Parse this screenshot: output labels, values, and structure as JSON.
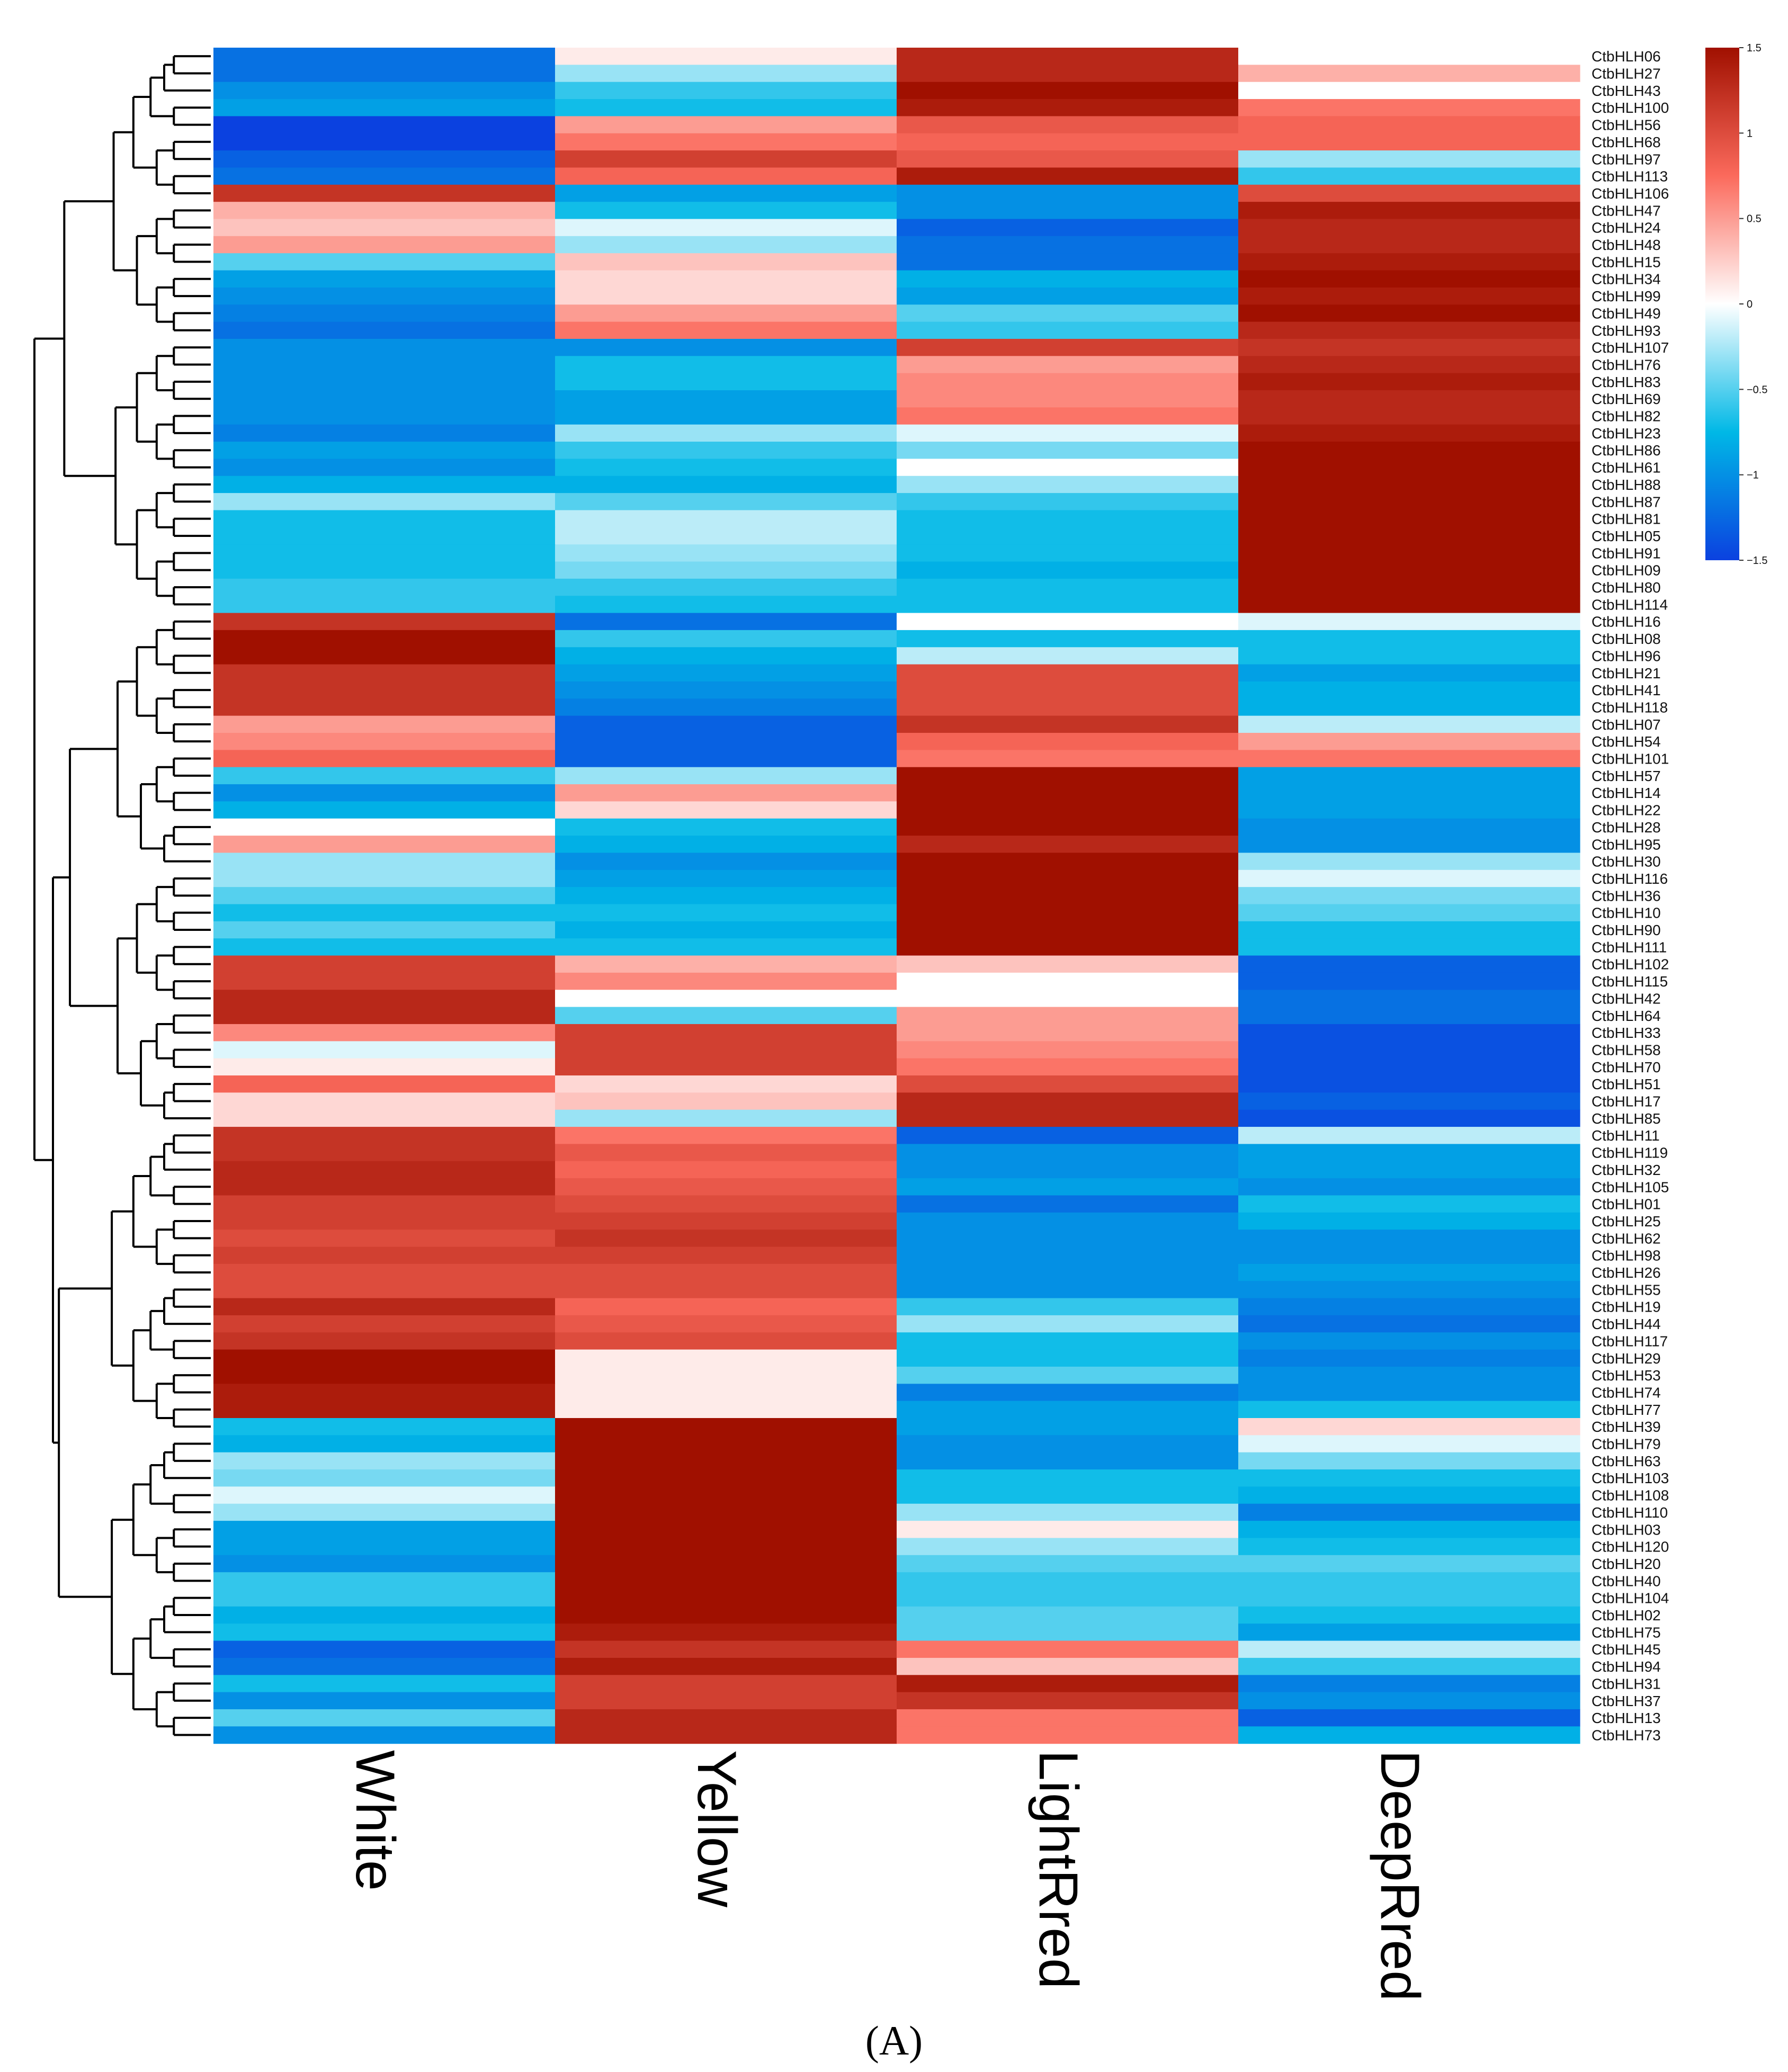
{
  "chart_data": {
    "type": "heatmap",
    "panel_label": "(A)",
    "columns": [
      "White",
      "Yellow",
      "LightRred",
      "DeepRred"
    ],
    "rows": [
      "CtbHLH06",
      "CtbHLH27",
      "CtbHLH43",
      "CtbHLH100",
      "CtbHLH56",
      "CtbHLH68",
      "CtbHLH97",
      "CtbHLH113",
      "CtbHLH106",
      "CtbHLH47",
      "CtbHLH24",
      "CtbHLH48",
      "CtbHLH15",
      "CtbHLH34",
      "CtbHLH99",
      "CtbHLH49",
      "CtbHLH93",
      "CtbHLH107",
      "CtbHLH76",
      "CtbHLH83",
      "CtbHLH69",
      "CtbHLH82",
      "CtbHLH23",
      "CtbHLH86",
      "CtbHLH61",
      "CtbHLH88",
      "CtbHLH87",
      "CtbHLH81",
      "CtbHLH05",
      "CtbHLH91",
      "CtbHLH09",
      "CtbHLH80",
      "CtbHLH114",
      "CtbHLH16",
      "CtbHLH08",
      "CtbHLH96",
      "CtbHLH21",
      "CtbHLH41",
      "CtbHLH118",
      "CtbHLH07",
      "CtbHLH54",
      "CtbHLH101",
      "CtbHLH57",
      "CtbHLH14",
      "CtbHLH22",
      "CtbHLH28",
      "CtbHLH95",
      "CtbHLH30",
      "CtbHLH116",
      "CtbHLH36",
      "CtbHLH10",
      "CtbHLH90",
      "CtbHLH111",
      "CtbHLH102",
      "CtbHLH115",
      "CtbHLH42",
      "CtbHLH64",
      "CtbHLH33",
      "CtbHLH58",
      "CtbHLH70",
      "CtbHLH51",
      "CtbHLH17",
      "CtbHLH85",
      "CtbHLH11",
      "CtbHLH119",
      "CtbHLH32",
      "CtbHLH105",
      "CtbHLH01",
      "CtbHLH25",
      "CtbHLH62",
      "CtbHLH98",
      "CtbHLH26",
      "CtbHLH55",
      "CtbHLH19",
      "CtbHLH44",
      "CtbHLH117",
      "CtbHLH29",
      "CtbHLH53",
      "CtbHLH74",
      "CtbHLH77",
      "CtbHLH39",
      "CtbHLH79",
      "CtbHLH63",
      "CtbHLH103",
      "CtbHLH108",
      "CtbHLH110",
      "CtbHLH03",
      "CtbHLH120",
      "CtbHLH20",
      "CtbHLH40",
      "CtbHLH104",
      "CtbHLH02",
      "CtbHLH75",
      "CtbHLH45",
      "CtbHLH94",
      "CtbHLH31",
      "CtbHLH37",
      "CtbHLH13",
      "CtbHLH73"
    ],
    "values": [
      [
        -1.2,
        0.1,
        1.3,
        0.0
      ],
      [
        -1.2,
        -0.3,
        1.3,
        0.4
      ],
      [
        -1.0,
        -0.6,
        1.5,
        0.0
      ],
      [
        -0.9,
        -0.7,
        1.4,
        0.7
      ],
      [
        -1.5,
        0.5,
        0.9,
        0.8
      ],
      [
        -1.5,
        0.7,
        0.8,
        0.8
      ],
      [
        -1.3,
        1.1,
        0.9,
        -0.3
      ],
      [
        -1.2,
        0.8,
        1.4,
        -0.6
      ],
      [
        1.2,
        -0.9,
        -1.0,
        1.0
      ],
      [
        0.4,
        -0.7,
        -1.0,
        1.4
      ],
      [
        0.3,
        -0.1,
        -1.3,
        1.3
      ],
      [
        0.5,
        -0.3,
        -1.2,
        1.3
      ],
      [
        -0.5,
        0.3,
        -1.2,
        1.4
      ],
      [
        -0.9,
        0.2,
        -0.8,
        1.5
      ],
      [
        -1.0,
        0.2,
        -0.9,
        1.4
      ],
      [
        -1.1,
        0.5,
        -0.5,
        1.5
      ],
      [
        -1.2,
        0.7,
        -0.6,
        1.3
      ],
      [
        -1.0,
        -1.0,
        1.1,
        1.2
      ],
      [
        -1.0,
        -0.7,
        0.5,
        1.3
      ],
      [
        -1.0,
        -0.7,
        0.6,
        1.4
      ],
      [
        -1.0,
        -0.9,
        0.6,
        1.3
      ],
      [
        -1.0,
        -0.9,
        0.7,
        1.3
      ],
      [
        -1.1,
        -0.3,
        -0.1,
        1.4
      ],
      [
        -0.9,
        -0.6,
        -0.4,
        1.5
      ],
      [
        -1.0,
        -0.7,
        0.0,
        1.5
      ],
      [
        -0.8,
        -0.8,
        -0.3,
        1.5
      ],
      [
        -0.3,
        -0.5,
        -0.6,
        1.5
      ],
      [
        -0.7,
        -0.2,
        -0.7,
        1.5
      ],
      [
        -0.7,
        -0.2,
        -0.7,
        1.5
      ],
      [
        -0.7,
        -0.3,
        -0.7,
        1.5
      ],
      [
        -0.7,
        -0.4,
        -0.8,
        1.5
      ],
      [
        -0.6,
        -0.6,
        -0.7,
        1.5
      ],
      [
        -0.6,
        -0.7,
        -0.7,
        1.5
      ],
      [
        1.2,
        -1.2,
        0.0,
        -0.1
      ],
      [
        1.5,
        -0.6,
        -0.7,
        -0.7
      ],
      [
        1.5,
        -0.8,
        -0.2,
        -0.7
      ],
      [
        1.2,
        -0.9,
        1.0,
        -0.9
      ],
      [
        1.2,
        -1.0,
        1.0,
        -0.8
      ],
      [
        1.2,
        -1.1,
        1.0,
        -0.8
      ],
      [
        0.5,
        -1.3,
        1.2,
        -0.2
      ],
      [
        0.6,
        -1.3,
        0.8,
        0.5
      ],
      [
        0.8,
        -1.3,
        0.7,
        0.7
      ],
      [
        -0.6,
        -0.3,
        1.5,
        -0.9
      ],
      [
        -1.0,
        0.5,
        1.5,
        -0.9
      ],
      [
        -0.8,
        0.2,
        1.5,
        -0.9
      ],
      [
        0.0,
        -0.7,
        1.5,
        -1.0
      ],
      [
        0.5,
        -0.8,
        1.3,
        -1.0
      ],
      [
        -0.3,
        -1.0,
        1.5,
        -0.3
      ],
      [
        -0.3,
        -0.9,
        1.5,
        -0.1
      ],
      [
        -0.5,
        -0.8,
        1.5,
        -0.4
      ],
      [
        -0.7,
        -0.7,
        1.5,
        -0.5
      ],
      [
        -0.5,
        -0.8,
        1.5,
        -0.7
      ],
      [
        -0.7,
        -0.7,
        1.5,
        -0.7
      ],
      [
        1.1,
        0.4,
        0.3,
        -1.3
      ],
      [
        1.1,
        0.6,
        0.0,
        -1.3
      ],
      [
        1.3,
        0.0,
        0.0,
        -1.2
      ],
      [
        1.3,
        -0.5,
        0.5,
        -1.2
      ],
      [
        0.6,
        1.1,
        0.5,
        -1.4
      ],
      [
        -0.1,
        1.1,
        0.6,
        -1.4
      ],
      [
        0.1,
        1.1,
        0.7,
        -1.4
      ],
      [
        0.8,
        0.2,
        1.0,
        -1.4
      ],
      [
        0.2,
        0.3,
        1.3,
        -1.3
      ],
      [
        0.2,
        -0.3,
        1.3,
        -1.4
      ],
      [
        1.2,
        0.7,
        -1.3,
        -0.2
      ],
      [
        1.2,
        0.9,
        -1.0,
        -0.9
      ],
      [
        1.3,
        0.8,
        -1.0,
        -0.9
      ],
      [
        1.3,
        0.9,
        -0.9,
        -1.0
      ],
      [
        1.1,
        1.0,
        -1.2,
        -0.7
      ],
      [
        1.1,
        1.1,
        -1.0,
        -0.8
      ],
      [
        1.0,
        1.2,
        -1.0,
        -1.0
      ],
      [
        1.1,
        1.1,
        -1.0,
        -1.0
      ],
      [
        1.0,
        1.0,
        -1.0,
        -0.9
      ],
      [
        1.0,
        1.0,
        -1.0,
        -1.0
      ],
      [
        1.3,
        0.8,
        -0.6,
        -1.1
      ],
      [
        1.1,
        0.9,
        -0.3,
        -1.2
      ],
      [
        1.2,
        1.0,
        -0.7,
        -1.0
      ],
      [
        1.5,
        0.1,
        -0.7,
        -1.1
      ],
      [
        1.5,
        0.1,
        -0.5,
        -1.0
      ],
      [
        1.4,
        0.1,
        -1.1,
        -1.0
      ],
      [
        1.4,
        0.1,
        -0.9,
        -0.7
      ],
      [
        -0.7,
        1.5,
        -0.9,
        0.2
      ],
      [
        -0.8,
        1.5,
        -1.0,
        -0.1
      ],
      [
        -0.3,
        1.5,
        -1.0,
        -0.4
      ],
      [
        -0.4,
        1.5,
        -0.7,
        -0.7
      ],
      [
        -0.1,
        1.5,
        -0.7,
        -0.8
      ],
      [
        -0.3,
        1.5,
        -0.3,
        -1.1
      ],
      [
        -0.9,
        1.5,
        0.1,
        -0.8
      ],
      [
        -0.9,
        1.5,
        -0.3,
        -0.7
      ],
      [
        -1.0,
        1.5,
        -0.5,
        -0.5
      ],
      [
        -0.6,
        1.5,
        -0.6,
        -0.6
      ],
      [
        -0.6,
        1.5,
        -0.6,
        -0.6
      ],
      [
        -0.8,
        1.5,
        -0.5,
        -0.7
      ],
      [
        -0.7,
        1.4,
        -0.5,
        -0.9
      ],
      [
        -1.3,
        1.2,
        0.7,
        -0.2
      ],
      [
        -1.2,
        1.4,
        0.3,
        -0.6
      ],
      [
        -0.7,
        1.1,
        1.4,
        -1.1
      ],
      [
        -1.0,
        1.1,
        1.2,
        -1.0
      ],
      [
        -0.5,
        1.3,
        0.7,
        -1.3
      ],
      [
        -1.0,
        1.3,
        0.7,
        -0.8
      ]
    ],
    "colorbar": {
      "min": -1.5,
      "max": 1.5,
      "ticks": [
        1.5,
        1,
        0.5,
        0,
        -0.5,
        -1,
        -1.5
      ]
    },
    "colors": {
      "low": "#0b41e0",
      "mid_low": "#00b8e6",
      "mid": "#ffffff",
      "mid_high": "#fb6a5c",
      "high": "#a01000"
    },
    "dendrogram": "left",
    "xlabel": "",
    "ylabel": ""
  }
}
